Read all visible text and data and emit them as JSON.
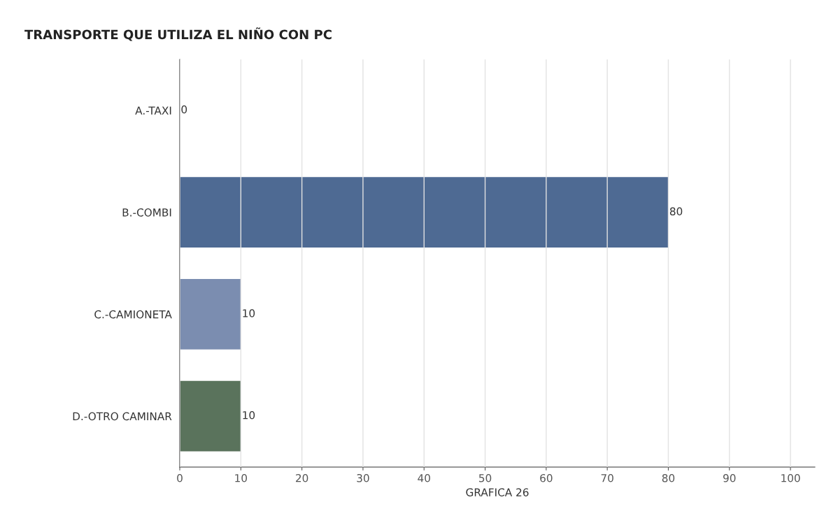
{
  "chart_data": {
    "type": "bar",
    "orientation": "horizontal",
    "title": "TRANSPORTE QUE UTILIZA EL NIÑO CON PC",
    "xlabel": "GRAFICA 26",
    "categories": [
      "A.-TAXI",
      "B.-COMBI",
      "C.-CAMIONETA",
      "D.-OTRO CAMINAR"
    ],
    "values": [
      0,
      80,
      10,
      10
    ],
    "colors": [
      "#4e6a93",
      "#4e6a93",
      "#7b8db0",
      "#5a735c"
    ],
    "xlim": [
      0,
      104
    ],
    "xticks": [
      0,
      10,
      20,
      30,
      40,
      50,
      60,
      70,
      80,
      90,
      100
    ],
    "grid": "x",
    "data_labels": true
  }
}
